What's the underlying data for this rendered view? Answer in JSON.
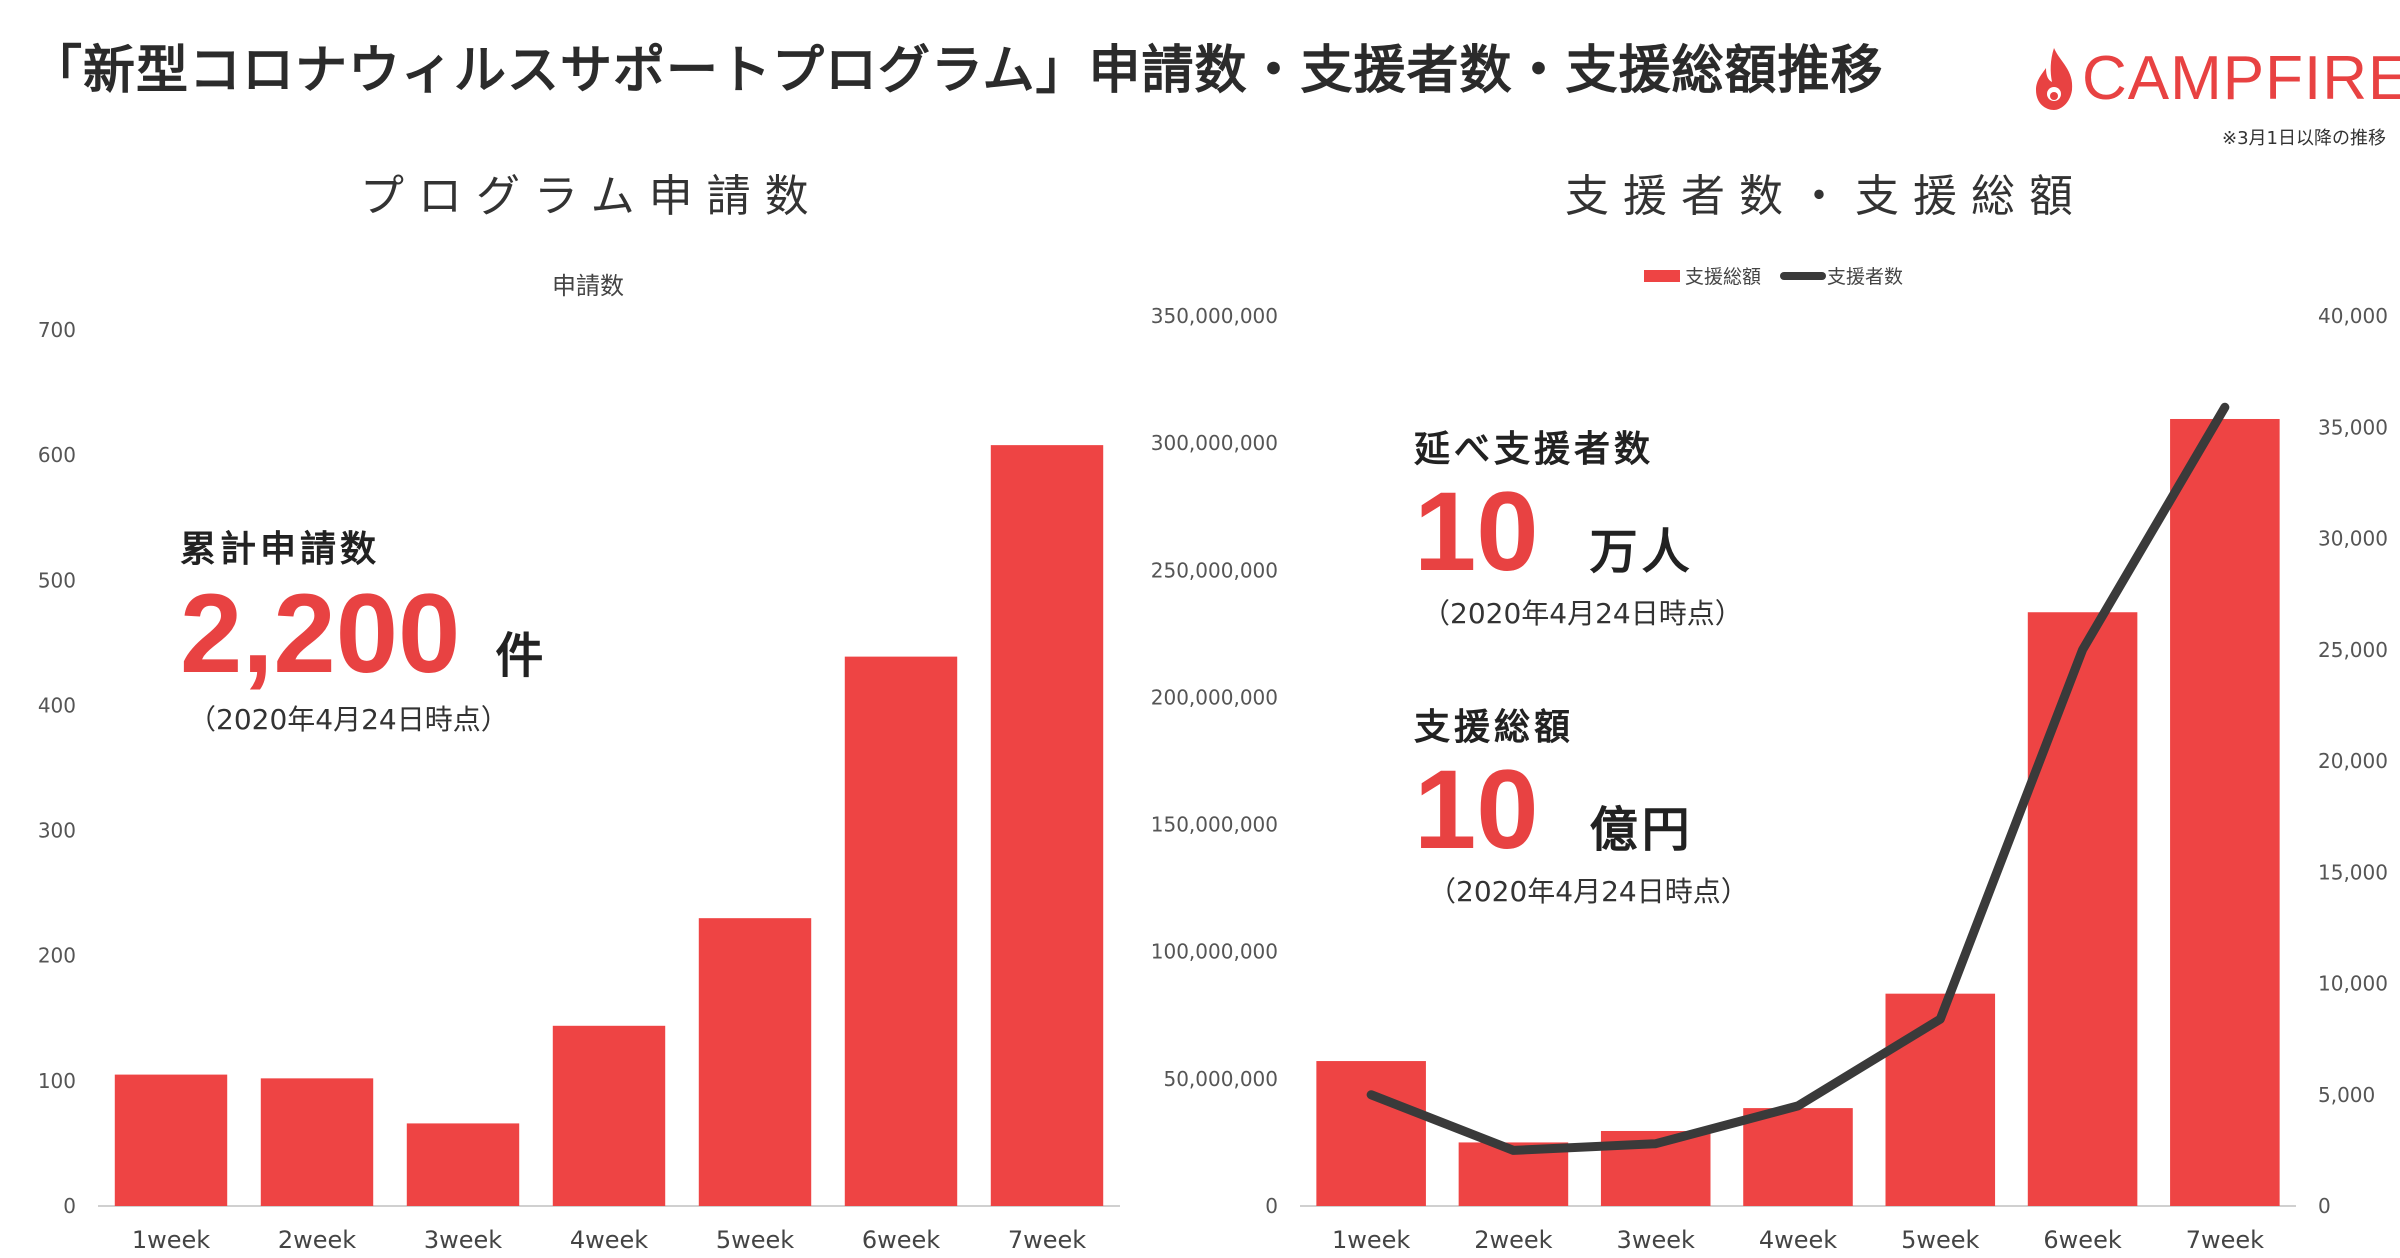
{
  "header": {
    "title": "「新型コロナウィルスサポートプログラム」申請数・支援者数・支援総額推移",
    "logo_text": "CAMPFIRE",
    "note": "※3月1日以降の推移"
  },
  "left_panel": {
    "section_title": "プログラム申請数",
    "callout_label": "累計申請数",
    "callout_value": "2,200",
    "callout_unit": "件",
    "callout_date": "（2020年4月24日時点）"
  },
  "right_panel": {
    "section_title": "支援者数・支援総額",
    "supporters_label": "延べ支援者数",
    "supporters_value": "10",
    "supporters_unit": "万人",
    "supporters_date": "（2020年4月24日時点）",
    "total_label": "支援総額",
    "total_value": "10",
    "total_unit": "億円",
    "total_date": "（2020年4月24日時点）"
  },
  "colors": {
    "bar": "#ee4444",
    "line": "#3a3a3a",
    "brand": "#e84242",
    "axis_text": "#555555"
  },
  "chart_data": [
    {
      "type": "bar",
      "title": "申請数",
      "categories": [
        "1week",
        "2week",
        "3week",
        "4week",
        "5week",
        "6week",
        "7week"
      ],
      "values": [
        105,
        102,
        66,
        144,
        230,
        439,
        608
      ],
      "yticks": [
        "0",
        "100",
        "200",
        "300",
        "400",
        "500",
        "600",
        "700"
      ],
      "ylim": [
        0,
        700
      ],
      "grid": false
    },
    {
      "type": "bar",
      "categories": [
        "1week",
        "2week",
        "3week",
        "4week",
        "5week",
        "6week",
        "7week"
      ],
      "legend": [
        "支援総額",
        "支援者数"
      ],
      "legend_position": "top",
      "series": [
        {
          "name": "支援総額",
          "type": "bar",
          "axis": "left",
          "values": [
            57000000,
            25000000,
            29500000,
            38500000,
            83500000,
            233500000,
            309500000
          ]
        },
        {
          "name": "支援者数",
          "type": "line",
          "axis": "right",
          "values": [
            5000,
            2500,
            2800,
            4500,
            8400,
            25000,
            35900
          ]
        }
      ],
      "yticks_left": [
        "0",
        "50,000,000",
        "100,000,000",
        "150,000,000",
        "200,000,000",
        "250,000,000",
        "300,000,000",
        "350,000,000"
      ],
      "yticks_right": [
        "0",
        "5,000",
        "10,000",
        "15,000",
        "20,000",
        "25,000",
        "30,000",
        "35,000",
        "40,000"
      ],
      "ylim_left": [
        0,
        350000000
      ],
      "ylim_right": [
        0,
        40000
      ],
      "grid": false
    }
  ]
}
